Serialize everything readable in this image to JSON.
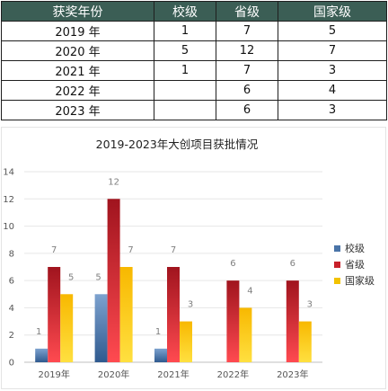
{
  "table": {
    "headers": [
      "获奖年份",
      "校级",
      "省级",
      "国家级"
    ],
    "rows": [
      [
        "2019 年",
        "1",
        "7",
        "5"
      ],
      [
        "2020 年",
        "5",
        "12",
        "7"
      ],
      [
        "2021 年",
        "1",
        "7",
        "3"
      ],
      [
        "2022 年",
        "",
        "6",
        "4"
      ],
      [
        "2023 年",
        "",
        "6",
        "3"
      ]
    ]
  },
  "colors": {
    "header_bg": "#3b5e55",
    "series": [
      "#4a74a8",
      "#c8202a",
      "#f2c200"
    ]
  },
  "chart_data": {
    "type": "bar",
    "title": "2019-2023年大创项目获批情况",
    "categories": [
      "2019年",
      "2020年",
      "2021年",
      "2022年",
      "2023年"
    ],
    "series": [
      {
        "name": "校级",
        "values": [
          1,
          5,
          1,
          null,
          null
        ]
      },
      {
        "name": "省级",
        "values": [
          7,
          12,
          7,
          6,
          6
        ]
      },
      {
        "name": "国家级",
        "values": [
          5,
          7,
          3,
          4,
          3
        ]
      }
    ],
    "ylim": [
      0,
      14
    ],
    "yticks": [
      0,
      2,
      4,
      6,
      8,
      10,
      12,
      14
    ],
    "xlabel": "",
    "ylabel": "",
    "grid": true,
    "legend": "right"
  }
}
